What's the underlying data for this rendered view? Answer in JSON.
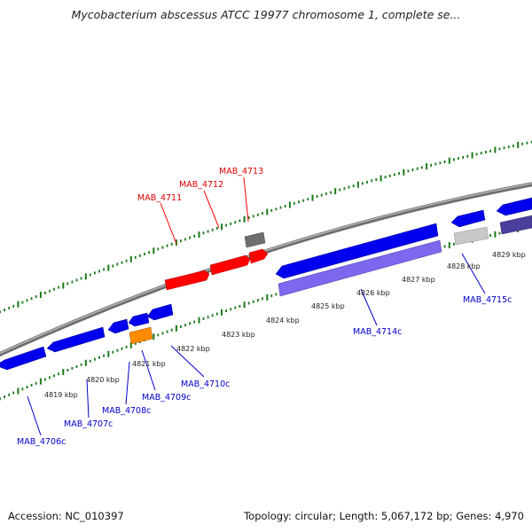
{
  "title": "Mycobacterium abscessus ATCC 19977 chromosome 1, complete se...",
  "footer": {
    "accession": "Accession: NC_010397",
    "summary": "Topology: circular; Length: 5,067,172 bp; Genes: 4,970"
  },
  "colors": {
    "backbone": "#808080",
    "ruler": "#1a7a1a",
    "forward_gene": "#ff0000",
    "reverse_gene": "#0000ee",
    "reverse_label": "#0000cc",
    "forward_label": "#dd0000",
    "orange_feature": "#ff8c00",
    "grey_feature": "#7a7a7a",
    "light_grey_feature": "#c8c8c8",
    "purple_feature": "#7b68ee",
    "dark_purple_feature": "#4a3f9c"
  },
  "kbp_labels": [
    "4819 kbp",
    "4820 kbp",
    "4821 kbp",
    "4822 kbp",
    "4823 kbp",
    "4824 kbp",
    "4825 kbp",
    "4826 kbp",
    "4827 kbp",
    "4828 kbp",
    "4829 kbp"
  ],
  "forward_genes": [
    "MAB_4711",
    "MAB_4712",
    "MAB_4713"
  ],
  "reverse_genes": [
    "MAB_4706c",
    "MAB_4707c",
    "MAB_4708c",
    "MAB_4709c",
    "MAB_4710c",
    "MAB_4714c",
    "MAB_4715c"
  ]
}
